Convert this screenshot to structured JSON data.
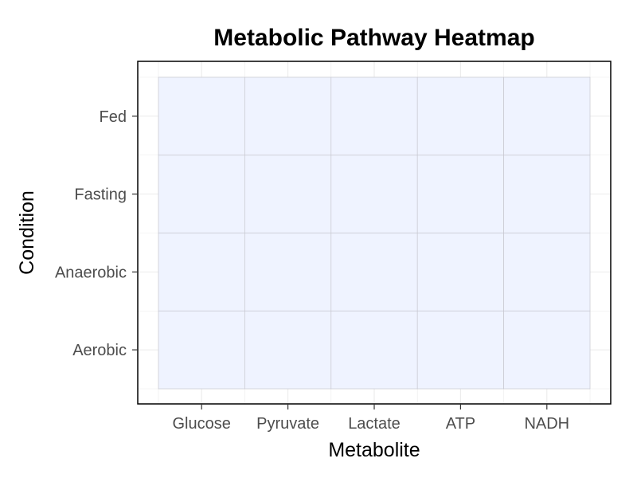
{
  "chart_data": {
    "type": "heatmap",
    "title": "Metabolic Pathway Heatmap",
    "xlabel": "Metabolite",
    "ylabel": "Condition",
    "x_categories": [
      "Glucose",
      "Pyruvate",
      "Lactate",
      "ATP",
      "NADH"
    ],
    "y_categories": [
      "Aerobic",
      "Anaerobic",
      "Fasting",
      "Fed"
    ],
    "values": [
      [
        0,
        0,
        0,
        0,
        0
      ],
      [
        0,
        0,
        0,
        0,
        0
      ],
      [
        0,
        0,
        0,
        0,
        0
      ],
      [
        0,
        0,
        0,
        0,
        0
      ]
    ],
    "grid": true,
    "legend": "none",
    "colors": {
      "tile_fill": "#eff3ff",
      "tile_border": "#c8c8d0",
      "panel_border": "#000000",
      "grid_line": "#ebebeb",
      "tick_label": "#4d4d4d",
      "background": "#ffffff"
    }
  }
}
